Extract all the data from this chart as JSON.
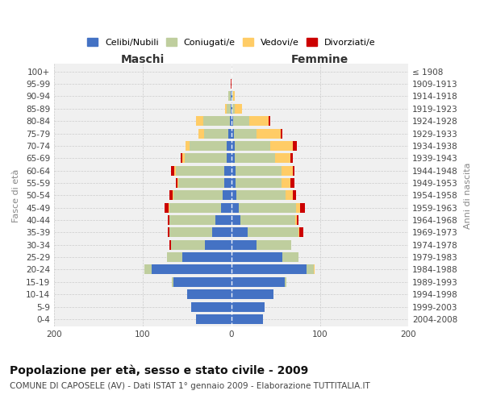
{
  "age_groups": [
    "0-4",
    "5-9",
    "10-14",
    "15-19",
    "20-24",
    "25-29",
    "30-34",
    "35-39",
    "40-44",
    "45-49",
    "50-54",
    "55-59",
    "60-64",
    "65-69",
    "70-74",
    "75-79",
    "80-84",
    "85-89",
    "90-94",
    "95-99",
    "100+"
  ],
  "birth_years": [
    "2004-2008",
    "1999-2003",
    "1994-1998",
    "1989-1993",
    "1984-1988",
    "1979-1983",
    "1974-1978",
    "1969-1973",
    "1964-1968",
    "1959-1963",
    "1954-1958",
    "1949-1953",
    "1944-1948",
    "1939-1943",
    "1934-1938",
    "1929-1933",
    "1924-1928",
    "1919-1923",
    "1914-1918",
    "1909-1913",
    "≤ 1908"
  ],
  "maschi": {
    "celibi": [
      40,
      45,
      50,
      65,
      90,
      55,
      30,
      22,
      18,
      12,
      10,
      8,
      8,
      5,
      5,
      3,
      2,
      1,
      1,
      0,
      0
    ],
    "coniugati": [
      0,
      0,
      0,
      2,
      8,
      18,
      38,
      48,
      52,
      58,
      55,
      52,
      55,
      48,
      42,
      28,
      30,
      4,
      2,
      0,
      0
    ],
    "vedovi": [
      0,
      0,
      0,
      0,
      0,
      0,
      0,
      0,
      0,
      1,
      1,
      1,
      1,
      2,
      5,
      6,
      8,
      2,
      0,
      0,
      0
    ],
    "divorziati": [
      0,
      0,
      0,
      0,
      0,
      0,
      2,
      2,
      2,
      4,
      4,
      2,
      4,
      2,
      0,
      0,
      0,
      0,
      0,
      1,
      0
    ]
  },
  "femmine": {
    "nubili": [
      36,
      38,
      48,
      60,
      85,
      58,
      28,
      18,
      10,
      8,
      6,
      5,
      5,
      4,
      4,
      3,
      2,
      1,
      1,
      0,
      0
    ],
    "coniugate": [
      0,
      0,
      0,
      2,
      8,
      18,
      40,
      58,
      62,
      65,
      55,
      52,
      52,
      45,
      40,
      25,
      18,
      3,
      1,
      0,
      0
    ],
    "vedove": [
      0,
      0,
      0,
      0,
      1,
      0,
      0,
      1,
      2,
      5,
      8,
      10,
      12,
      18,
      25,
      28,
      22,
      8,
      2,
      0,
      0
    ],
    "divorziate": [
      0,
      0,
      0,
      0,
      0,
      0,
      0,
      4,
      2,
      5,
      4,
      4,
      2,
      2,
      5,
      2,
      2,
      0,
      0,
      0,
      0
    ]
  },
  "colors": {
    "celibi_nubili": "#4472C4",
    "coniugati_e": "#BFCE9E",
    "vedovi_e": "#FFCC66",
    "divorziati_e": "#CC0000"
  },
  "xlim": 200,
  "title": "Popolazione per età, sesso e stato civile - 2009",
  "subtitle": "COMUNE DI CAPOSELE (AV) - Dati ISTAT 1° gennaio 2009 - Elaborazione TUTTITALIA.IT",
  "ylabel_left": "Fasce di età",
  "ylabel_right": "Anni di nascita",
  "xlabel_left": "Maschi",
  "xlabel_right": "Femmine",
  "legend_labels": [
    "Celibi/Nubili",
    "Coniugati/e",
    "Vedovi/e",
    "Divorziati/e"
  ],
  "bg_color": "#f0f0f0",
  "title_fontsize": 10,
  "subtitle_fontsize": 7.5,
  "tick_fontsize": 7.5,
  "axis_label_fontsize": 8,
  "legend_fontsize": 8,
  "maschi_femmine_fontsize": 10
}
